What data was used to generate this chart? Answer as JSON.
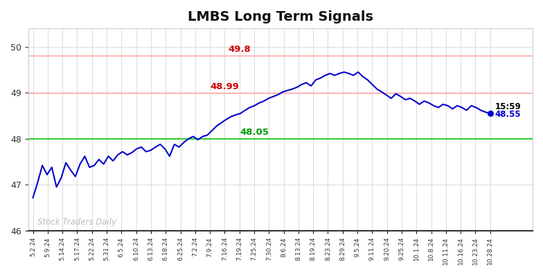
{
  "title": "LMBS Long Term Signals",
  "title_fontsize": 14,
  "title_fontweight": "bold",
  "background_color": "#ffffff",
  "line_color": "#0000cc",
  "line_width": 1.5,
  "ylim": [
    46,
    50.4
  ],
  "yticks": [
    46,
    47,
    48,
    49,
    50
  ],
  "hline_green": 48.0,
  "hline_red1": 48.99,
  "hline_red2": 49.8,
  "hline_green_color": "#33cc33",
  "hline_red_color": "#ffaaaa",
  "label_49_8_text": "49.8",
  "label_49_8_color": "#cc0000",
  "label_48_99_text": "48.99",
  "label_48_99_color": "#cc0000",
  "label_48_05_text": "48.05",
  "label_48_05_color": "#009900",
  "label_end_time": "15:59",
  "label_end_value": "48.55",
  "label_end_value_color": "#0000cc",
  "watermark_text": "Stock Traders Daily",
  "watermark_color": "#bbbbbb",
  "grid_color": "#dddddd",
  "x_labels": [
    "5.2.24",
    "5.9.24",
    "5.14.24",
    "5.17.24",
    "5.22.24",
    "5.31.24",
    "6.5.24",
    "6.10.24",
    "6.13.24",
    "6.18.24",
    "6.25.24",
    "7.2.24",
    "7.9.24",
    "7.16.24",
    "7.19.24",
    "7.25.24",
    "7.30.24",
    "8.6.24",
    "8.13.24",
    "8.19.24",
    "8.23.24",
    "8.29.24",
    "9.5.24",
    "9.11.24",
    "9.20.24",
    "9.25.24",
    "10.1.24",
    "10.8.24",
    "10.11.24",
    "10.16.24",
    "10.23.24",
    "10.28.24"
  ],
  "y_values": [
    46.72,
    47.05,
    47.42,
    47.22,
    47.38,
    46.95,
    47.15,
    47.48,
    47.32,
    47.18,
    47.45,
    47.62,
    47.38,
    47.42,
    47.55,
    47.45,
    47.62,
    47.52,
    47.65,
    47.72,
    47.65,
    47.7,
    47.78,
    47.82,
    47.72,
    47.75,
    47.82,
    47.88,
    47.78,
    47.62,
    47.88,
    47.82,
    47.92,
    48.0,
    48.05,
    47.98,
    48.05,
    48.08,
    48.18,
    48.28,
    48.35,
    48.42,
    48.48,
    48.52,
    48.55,
    48.62,
    48.68,
    48.72,
    48.78,
    48.82,
    48.88,
    48.92,
    48.96,
    49.02,
    49.05,
    49.08,
    49.12,
    49.18,
    49.22,
    49.15,
    49.28,
    49.32,
    49.38,
    49.42,
    49.38,
    49.42,
    49.45,
    49.42,
    49.38,
    49.45,
    49.35,
    49.28,
    49.18,
    49.08,
    49.02,
    48.95,
    48.88,
    48.98,
    48.92,
    48.85,
    48.88,
    48.82,
    48.75,
    48.82,
    48.78,
    48.72,
    48.68,
    48.75,
    48.72,
    48.65,
    48.72,
    48.68,
    48.62,
    48.72,
    48.68,
    48.62,
    48.58,
    48.55
  ]
}
